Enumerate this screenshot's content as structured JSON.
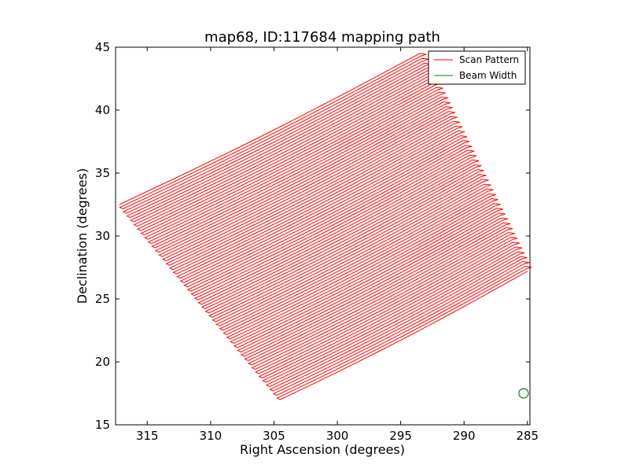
{
  "chart_data": {
    "type": "line",
    "title": "map68, ID:117684 mapping path",
    "xlabel": "Right Ascension (degrees)",
    "ylabel": "Declination (degrees)",
    "xlim": [
      317.5,
      284.8
    ],
    "ylim": [
      15,
      45
    ],
    "x_ticks": [
      315,
      310,
      305,
      300,
      295,
      290,
      285
    ],
    "y_ticks": [
      15,
      20,
      25,
      30,
      35,
      40,
      45
    ],
    "grid": false,
    "legend_position": "top-right",
    "series": [
      {
        "name": "Scan Pattern",
        "color": "#ff0000",
        "style": "line"
      },
      {
        "name": "Beam Width",
        "color": "#008000",
        "style": "circle"
      }
    ],
    "scan_region": {
      "corners": [
        {
          "ra": 317.2,
          "dec": 32.5
        },
        {
          "ra": 293.5,
          "dec": 44.5
        },
        {
          "ra": 285.0,
          "dec": 27.2
        },
        {
          "ra": 304.5,
          "dec": 17.0
        }
      ],
      "n_scans": 90
    },
    "beam": {
      "ra": 285.3,
      "dec": 17.5,
      "radius_deg": 0.37
    }
  }
}
